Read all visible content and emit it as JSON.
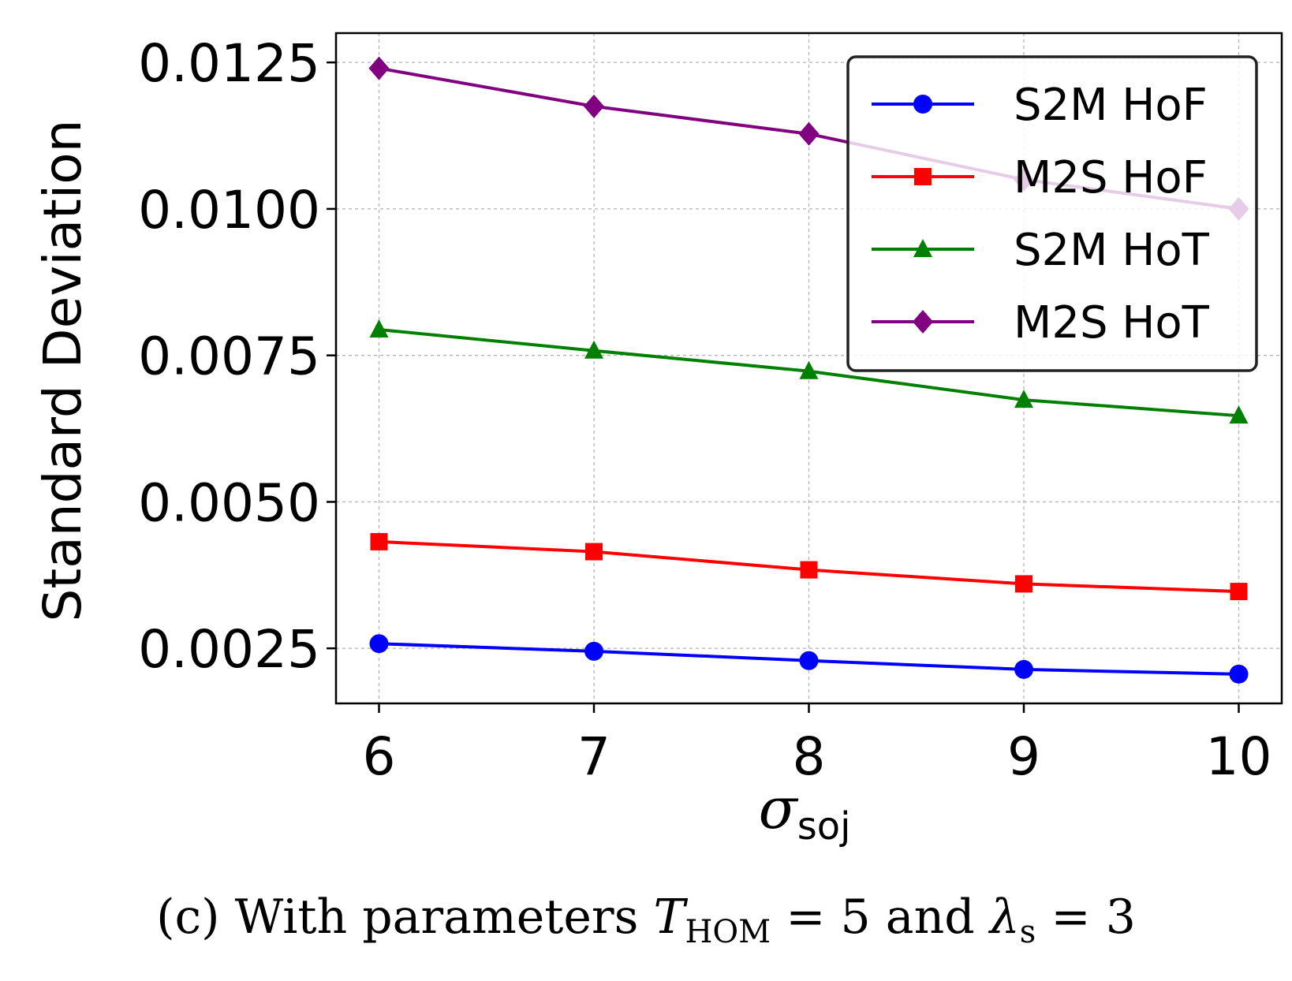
{
  "chart_data": {
    "type": "line",
    "x": [
      6,
      7,
      8,
      9,
      10
    ],
    "series": [
      {
        "name": "S2M HoF",
        "color": "#0000ff",
        "marker": "circle",
        "values": [
          0.00258,
          0.00245,
          0.00229,
          0.00214,
          0.00206
        ]
      },
      {
        "name": "M2S HoF",
        "color": "#ff0000",
        "marker": "square",
        "values": [
          0.00432,
          0.00415,
          0.00384,
          0.0036,
          0.00347
        ]
      },
      {
        "name": "S2M HoT",
        "color": "#008000",
        "marker": "triangle",
        "values": [
          0.00794,
          0.00758,
          0.00723,
          0.00674,
          0.00647
        ]
      },
      {
        "name": "M2S HoT",
        "color": "#800080",
        "marker": "diamond",
        "values": [
          0.0124,
          0.01175,
          0.01128,
          0.0105,
          0.01
        ]
      }
    ],
    "xlim": [
      5.8,
      10.2
    ],
    "ylim": [
      0.00156,
      0.013
    ],
    "xticks": [
      6,
      7,
      8,
      9,
      10
    ],
    "xtick_labels": [
      "6",
      "7",
      "8",
      "9",
      "10"
    ],
    "yticks": [
      0.0025,
      0.005,
      0.0075,
      0.01,
      0.0125
    ],
    "ytick_labels": [
      "0.0025",
      "0.0050",
      "0.0075",
      "0.0100",
      "0.0125"
    ],
    "xlabel": "σ",
    "xlabel_sub": "soj",
    "ylabel": "Standard Deviation",
    "grid": true,
    "legend_position": "top-right"
  },
  "caption": {
    "prefix": "(c)",
    "text": "With parameters",
    "t_symbol": "T",
    "t_sub": "HOM",
    "t_eq": "= 5 and",
    "lambda_symbol": "λ",
    "lambda_sub": "s",
    "lambda_eq": "= 3"
  }
}
